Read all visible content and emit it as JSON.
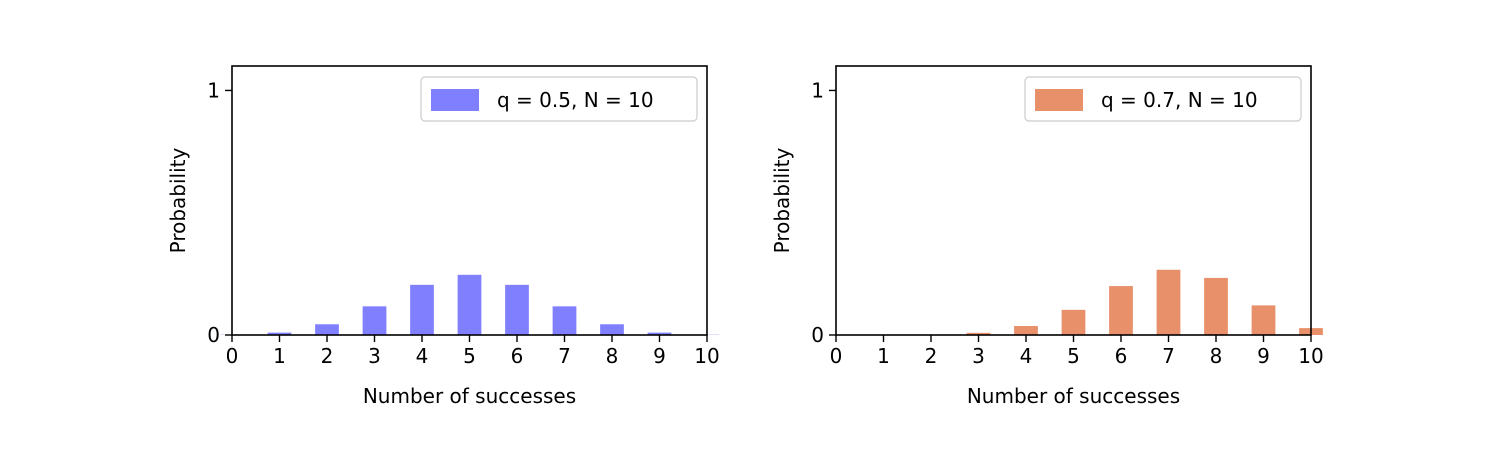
{
  "chart_data": [
    {
      "type": "bar",
      "categories": [
        0,
        1,
        2,
        3,
        4,
        5,
        6,
        7,
        8,
        9,
        10
      ],
      "values": [
        0.001,
        0.0098,
        0.0439,
        0.1172,
        0.2051,
        0.2461,
        0.2051,
        0.1172,
        0.0439,
        0.0098,
        0.001
      ],
      "series": [
        {
          "name": "q = 0.5, N = 10",
          "color": "#8080ff"
        }
      ],
      "title": "",
      "xlabel": "Number of successes",
      "ylabel": "Probability",
      "xlim": [
        0,
        10
      ],
      "ylim": [
        0,
        1.1
      ],
      "xticks": [
        0,
        1,
        2,
        3,
        4,
        5,
        6,
        7,
        8,
        9,
        10
      ],
      "yticks": [
        0,
        1
      ],
      "legend_position": "top-right",
      "grid": false
    },
    {
      "type": "bar",
      "categories": [
        0,
        1,
        2,
        3,
        4,
        5,
        6,
        7,
        8,
        9,
        10
      ],
      "values": [
        0.0,
        0.0001,
        0.0014,
        0.009,
        0.0368,
        0.1029,
        0.2001,
        0.2668,
        0.2335,
        0.1211,
        0.0282
      ],
      "series": [
        {
          "name": "q = 0.7, N = 10",
          "color": "#e8906a"
        }
      ],
      "title": "",
      "xlabel": "Number of successes",
      "ylabel": "Probability",
      "xlim": [
        0,
        10
      ],
      "ylim": [
        0,
        1.1
      ],
      "xticks": [
        0,
        1,
        2,
        3,
        4,
        5,
        6,
        7,
        8,
        9,
        10
      ],
      "yticks": [
        0,
        1
      ],
      "legend_position": "top-right",
      "grid": false
    }
  ]
}
